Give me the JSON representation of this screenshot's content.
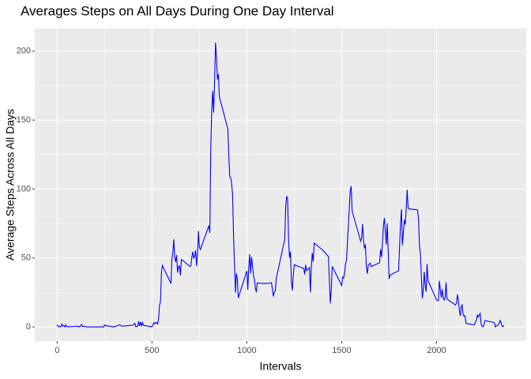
{
  "chart_data": {
    "type": "line",
    "title": "Averages Steps on All Days During One Day Interval",
    "x_label": "Intervals",
    "y_label": "Average Steps Across All Days",
    "xlim": [
      -117.75,
      2472.75
    ],
    "ylim": [
      -10.3,
      216.5
    ],
    "xticks": [
      0,
      500,
      1000,
      1500,
      2000
    ],
    "yticks": [
      0,
      50,
      100,
      150,
      200
    ],
    "grid": true,
    "series": [
      {
        "color": "#0000ff",
        "x": [
          0,
          5,
          10,
          15,
          20,
          25,
          30,
          35,
          40,
          45,
          50,
          55,
          100,
          105,
          110,
          115,
          120,
          125,
          130,
          135,
          140,
          145,
          150,
          155,
          200,
          230,
          245,
          250,
          255,
          300,
          330,
          340,
          400,
          410,
          415,
          420,
          425,
          430,
          435,
          440,
          445,
          450,
          455,
          500,
          505,
          510,
          515,
          520,
          525,
          530,
          535,
          540,
          545,
          550,
          555,
          600,
          605,
          610,
          615,
          620,
          625,
          630,
          635,
          640,
          645,
          650,
          655,
          700,
          705,
          710,
          715,
          720,
          725,
          730,
          735,
          740,
          745,
          750,
          755,
          800,
          805,
          810,
          815,
          820,
          825,
          830,
          835,
          840,
          845,
          850,
          855,
          900,
          905,
          910,
          915,
          920,
          925,
          930,
          935,
          940,
          945,
          950,
          955,
          1000,
          1005,
          1010,
          1015,
          1020,
          1025,
          1030,
          1035,
          1040,
          1045,
          1050,
          1055,
          1100,
          1130,
          1140,
          1145,
          1150,
          1155,
          1200,
          1205,
          1210,
          1215,
          1220,
          1225,
          1230,
          1235,
          1240,
          1245,
          1250,
          1300,
          1305,
          1310,
          1315,
          1330,
          1335,
          1340,
          1345,
          1350,
          1355,
          1400,
          1430,
          1435,
          1440,
          1445,
          1450,
          1500,
          1505,
          1510,
          1515,
          1520,
          1525,
          1545,
          1550,
          1555,
          1600,
          1605,
          1610,
          1615,
          1620,
          1625,
          1630,
          1635,
          1640,
          1645,
          1650,
          1655,
          1700,
          1705,
          1710,
          1715,
          1720,
          1725,
          1730,
          1735,
          1740,
          1745,
          1750,
          1755,
          1800,
          1805,
          1810,
          1815,
          1820,
          1825,
          1830,
          1835,
          1840,
          1845,
          1850,
          1855,
          1900,
          1905,
          1910,
          1915,
          1920,
          1925,
          1930,
          1935,
          1940,
          1945,
          1950,
          1955,
          2000,
          2005,
          2010,
          2015,
          2020,
          2025,
          2030,
          2035,
          2040,
          2045,
          2050,
          2055,
          2100,
          2105,
          2110,
          2115,
          2120,
          2125,
          2130,
          2135,
          2140,
          2145,
          2150,
          2155,
          2200,
          2205,
          2210,
          2215,
          2220,
          2225,
          2230,
          2235,
          2240,
          2245,
          2250,
          2255,
          2300,
          2305,
          2310,
          2315,
          2320,
          2325,
          2330,
          2335,
          2340,
          2345,
          2350,
          2355
        ],
        "values": [
          1.7,
          0.3,
          0.1,
          0.2,
          0.1,
          2.1,
          0.5,
          0.9,
          0,
          1.5,
          0.3,
          0.1,
          0.3,
          0.7,
          0.2,
          0.3,
          0,
          1.1,
          1.8,
          0.2,
          0.2,
          0.4,
          0.3,
          0,
          0,
          0,
          0,
          1.5,
          0.9,
          0,
          1.6,
          0.5,
          1.2,
          2.6,
          0,
          0.3,
          0.4,
          4.1,
          0.7,
          3.5,
          0.8,
          3.1,
          1.1,
          0,
          1.6,
          3.0,
          2.2,
          3.3,
          3.0,
          2.1,
          6.1,
          16.0,
          18.3,
          39.5,
          44.5,
          31.5,
          49.3,
          53.8,
          63.5,
          50.0,
          47.1,
          52.2,
          39.3,
          44.0,
          44.2,
          37.4,
          49.0,
          43.8,
          44.4,
          50.5,
          54.5,
          49.9,
          50.9,
          55.7,
          44.3,
          52.3,
          69.5,
          57.8,
          56.2,
          73.4,
          68.2,
          129.4,
          157.5,
          171.2,
          155.4,
          177.3,
          206.2,
          195.9,
          179.6,
          183.4,
          167.0,
          143.5,
          124.0,
          109.1,
          108.1,
          103.7,
          96.0,
          66.2,
          45.2,
          24.8,
          38.8,
          35.0,
          21.1,
          40.6,
          27.0,
          42.4,
          52.7,
          38.9,
          50.8,
          44.3,
          37.4,
          34.7,
          28.3,
          25.1,
          31.9,
          31.4,
          32.0,
          22.0,
          25.6,
          26.0,
          35.0,
          63.9,
          87.6,
          94.8,
          92.8,
          63.4,
          50.2,
          54.5,
          32.4,
          26.5,
          37.7,
          45.1,
          42.4,
          38.1,
          45.0,
          40.9,
          43.0,
          25.1,
          43.7,
          53.6,
          47.3,
          60.8,
          55.8,
          51.0,
          34.0,
          17.1,
          26.6,
          43.9,
          30.0,
          36.1,
          35.5,
          38.8,
          45.9,
          47.8,
          98.7,
          102.1,
          84.0,
          62.1,
          64.1,
          74.6,
          63.2,
          56.9,
          59.8,
          43.9,
          38.6,
          44.7,
          45.5,
          46.2,
          43.7,
          46.6,
          56.3,
          50.7,
          61.2,
          73.4,
          79.0,
          68.9,
          59.7,
          75.1,
          56.5,
          34.8,
          37.5,
          40.7,
          58.0,
          74.7,
          85.3,
          59.3,
          67.8,
          77.7,
          74.2,
          85.3,
          99.5,
          86.6,
          85.6,
          84.9,
          77.8,
          58.0,
          53.4,
          36.3,
          20.7,
          27.4,
          40.0,
          30.2,
          25.5,
          45.7,
          33.5,
          19.6,
          19.0,
          19.3,
          33.3,
          26.8,
          21.2,
          27.3,
          21.3,
          19.5,
          21.3,
          32.3,
          20.2,
          15.9,
          17.2,
          23.5,
          19.2,
          12.5,
          8.0,
          14.7,
          16.3,
          8.7,
          7.8,
          8.1,
          2.6,
          1.5,
          3.7,
          4.8,
          8.5,
          7.1,
          8.7,
          9.8,
          2.2,
          0.3,
          0.1,
          1.6,
          4.6,
          3.3,
          2.8,
          0,
          0.8,
          1.0,
          1.6,
          2.6,
          4.7,
          3.3,
          0.6,
          0.2,
          1.1
        ]
      }
    ]
  }
}
